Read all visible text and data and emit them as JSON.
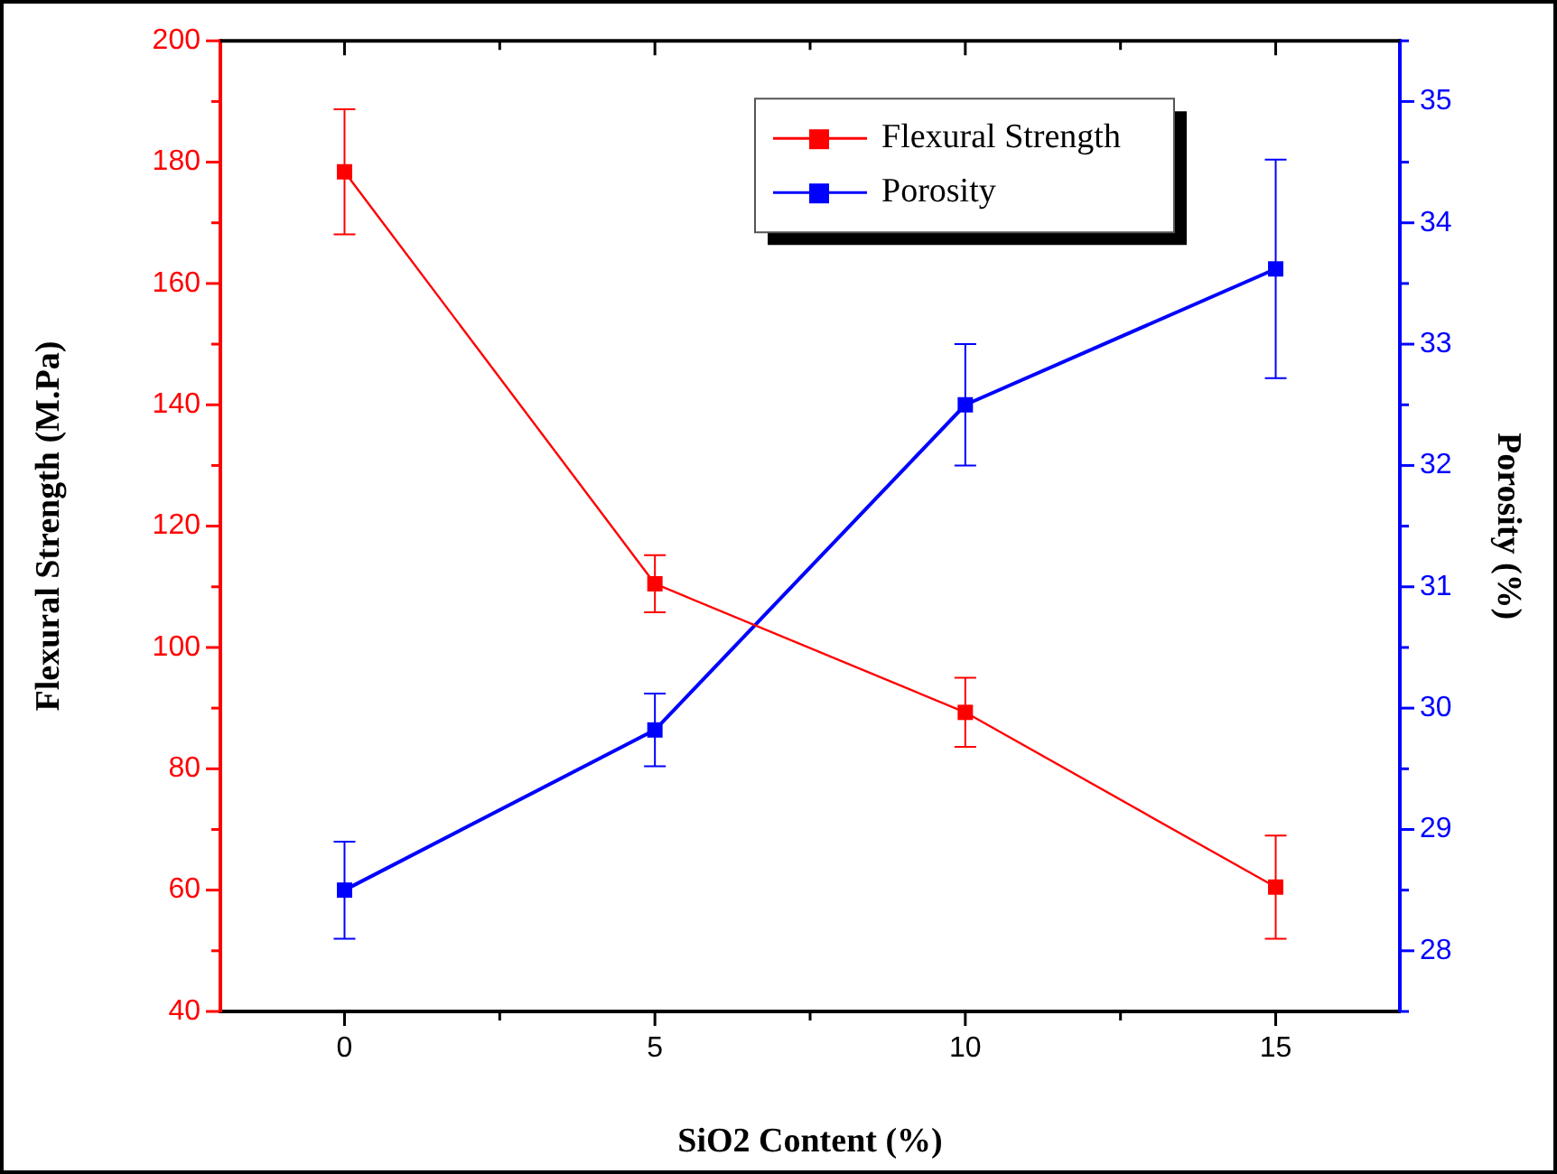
{
  "chart_data": {
    "type": "line",
    "xlabel": "SiO2 Content (%)",
    "ylabel": "Flexural Strength (M.Pa)",
    "y2label": "Porosity (%)",
    "x": [
      0,
      5,
      10,
      15
    ],
    "series": [
      {
        "name": "Flexural Strength",
        "color": "#ff0000",
        "values": [
          178.4,
          110.5,
          89.3,
          60.5
        ],
        "errors": [
          10.3,
          4.7,
          5.7,
          8.5
        ]
      },
      {
        "name": "Porosity",
        "color": "#0000ff",
        "axis": "y2",
        "values": [
          28.5,
          29.82,
          32.5,
          33.62
        ],
        "errors": [
          0.4,
          0.3,
          0.5,
          0.9
        ]
      }
    ],
    "xlim": [
      -2,
      17
    ],
    "xticks": [
      0,
      {
        "value": 2.5,
        "label": null
      },
      5,
      {
        "value": 7.5,
        "label": null
      },
      10,
      {
        "value": 12.5,
        "label": null
      },
      15
    ],
    "ylim": [
      40,
      200
    ],
    "yticks": [
      40,
      {
        "value": 50,
        "label": null
      },
      60,
      {
        "value": 70,
        "label": null
      },
      80,
      {
        "value": 90,
        "label": null
      },
      100,
      {
        "value": 110,
        "label": null
      },
      120,
      {
        "value": 130,
        "label": null
      },
      140,
      {
        "value": 150,
        "label": null
      },
      160,
      {
        "value": 170,
        "label": null
      },
      180,
      {
        "value": 190,
        "label": null
      },
      200
    ],
    "y2lim": [
      27.5,
      35.5
    ],
    "y2ticks": [
      {
        "value": 27.5,
        "label": null
      },
      28,
      {
        "value": 28.5,
        "label": null
      },
      29,
      {
        "value": 29.5,
        "label": null
      },
      30,
      {
        "value": 30.5,
        "label": null
      },
      31,
      {
        "value": 31.5,
        "label": null
      },
      32,
      {
        "value": 32.5,
        "label": null
      },
      33,
      {
        "value": 33.5,
        "label": null
      },
      34,
      {
        "value": 34.5,
        "label": null
      },
      35,
      {
        "value": 35.5,
        "label": null
      }
    ],
    "grid": false,
    "legend": "top right",
    "marker": "square",
    "line_style": "solid"
  }
}
